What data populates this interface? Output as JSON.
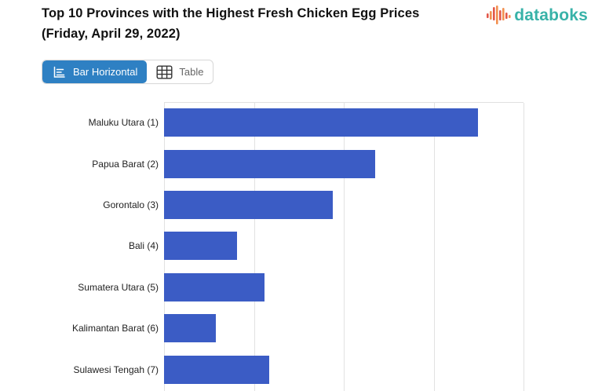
{
  "header": {
    "title_line1": "Top 10 Provinces with the Highest Fresh Chicken Egg Prices",
    "title_line2": "(Friday, April 29, 2022)",
    "logo_text": "databoks",
    "logo_text_color": "#38b2a8",
    "logo_icon_red": "#e25649",
    "logo_icon_orange": "#f29050"
  },
  "toolbar": {
    "bar_horizontal_label": "Bar Horizontal",
    "table_label": "Table",
    "active_view": "Bar Horizontal",
    "active_bg_color": "#2e80c3"
  },
  "chart_data": {
    "type": "bar",
    "orientation": "horizontal",
    "title": "Top 10 Provinces with the Highest Fresh Chicken Egg Prices (Friday, April 29, 2022)",
    "categories": [
      "Maluku Utara (1)",
      "Papua Barat (2)",
      "Gorontalo (3)",
      "Bali (4)",
      "Sumatera Utara (5)",
      "Kalimantan Barat (6)",
      "Sulawesi Tengah (7)"
    ],
    "values": [
      3.49,
      2.35,
      1.88,
      0.81,
      1.12,
      0.58,
      1.17
    ],
    "value_units": "relative gridline intervals (x-axis tick labels not visible; chart cropped at bottom, rows 8-10 of Top 10 not shown)",
    "xlim": [
      0,
      4
    ],
    "bar_color": "#3b5cc5",
    "gridline_color": "#e2e2e2",
    "grid": true,
    "legend": "none"
  }
}
